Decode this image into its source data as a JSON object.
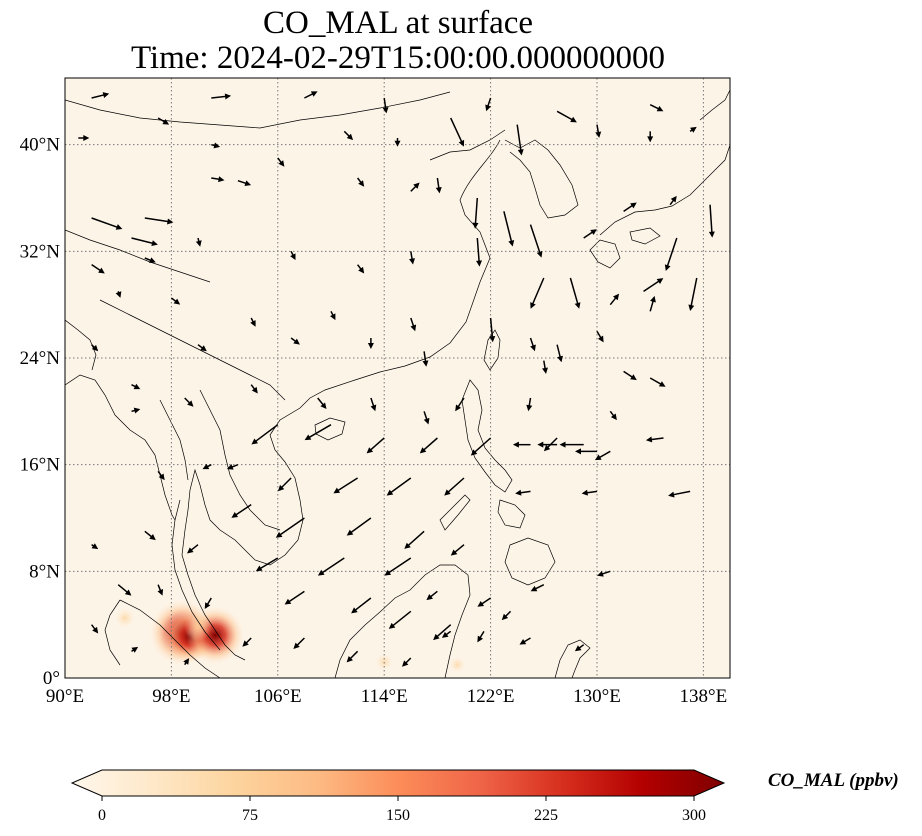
{
  "title": {
    "line1": "CO_MAL at surface",
    "line2": "Time: 2024-02-29T15:00:00.000000000"
  },
  "map": {
    "projection": "PlateCarree",
    "lon_range": [
      90,
      140
    ],
    "lat_range": [
      0,
      45
    ],
    "gridlines": "dotted",
    "background_color": "#fdf4e8",
    "x_ticks": [
      {
        "value": 90,
        "label": "90°E"
      },
      {
        "value": 98,
        "label": "98°E"
      },
      {
        "value": 106,
        "label": "106°E"
      },
      {
        "value": 114,
        "label": "114°E"
      },
      {
        "value": 122,
        "label": "122°E"
      },
      {
        "value": 130,
        "label": "130°E"
      },
      {
        "value": 138,
        "label": "138°E"
      }
    ],
    "y_ticks": [
      {
        "value": 0,
        "label": "0°"
      },
      {
        "value": 8,
        "label": "8°N"
      },
      {
        "value": 16,
        "label": "16°N"
      },
      {
        "value": 24,
        "label": "24°N"
      },
      {
        "value": 32,
        "label": "32°N"
      },
      {
        "value": 40,
        "label": "40°N"
      }
    ],
    "hotspots": [
      {
        "lon": 98.8,
        "lat": 3.4,
        "value": 270
      },
      {
        "lon": 99.4,
        "lat": 3.1,
        "value": 200
      },
      {
        "lon": 101.3,
        "lat": 3.2,
        "value": 230
      },
      {
        "lon": 100.0,
        "lat": 3.8,
        "value": 80
      },
      {
        "lon": 94.5,
        "lat": 4.5,
        "value": 40
      },
      {
        "lon": 114.0,
        "lat": 1.2,
        "value": 25
      },
      {
        "lon": 119.5,
        "lat": 1.0,
        "value": 20
      }
    ],
    "wind_vectors_note": "scale only",
    "wind_vectors": [
      [
        92,
        43.5,
        0.8,
        0.2
      ],
      [
        101,
        43.5,
        0.9,
        0.1
      ],
      [
        108,
        43.5,
        0.6,
        0.3
      ],
      [
        114,
        43.5,
        0.1,
        -0.7
      ],
      [
        122,
        43.5,
        -0.2,
        -0.6
      ],
      [
        127,
        42.5,
        0.9,
        -0.5
      ],
      [
        134,
        43,
        0.6,
        -0.3
      ],
      [
        119,
        42,
        0.6,
        -1.3
      ],
      [
        124,
        41.5,
        0.2,
        -1.4
      ],
      [
        101,
        40,
        0.4,
        -0.1
      ],
      [
        97,
        42,
        0.5,
        -0.3
      ],
      [
        91,
        40.5,
        0.5,
        0
      ],
      [
        111,
        41,
        0.4,
        -0.4
      ],
      [
        115,
        40.5,
        0,
        -0.4
      ],
      [
        130,
        41.5,
        0.1,
        -0.6
      ],
      [
        134,
        41,
        0,
        -0.5
      ],
      [
        137,
        41,
        0.3,
        0.2
      ],
      [
        106,
        39,
        0.3,
        -0.4
      ],
      [
        118,
        37.5,
        0.1,
        -0.7
      ],
      [
        121,
        36,
        -0.1,
        -1.4
      ],
      [
        92,
        34.5,
        1.4,
        -0.5
      ],
      [
        96,
        34.5,
        1.3,
        -0.2
      ],
      [
        95,
        33,
        1.2,
        -0.3
      ],
      [
        101,
        37.5,
        0.6,
        -0.1
      ],
      [
        103,
        37.3,
        0.6,
        -0.2
      ],
      [
        112,
        37.5,
        0.3,
        -0.4
      ],
      [
        116,
        36.5,
        0.4,
        0.4
      ],
      [
        123,
        35,
        0.4,
        -1.6
      ],
      [
        125,
        34,
        0.5,
        -1.5
      ],
      [
        129,
        33,
        0.6,
        0.4
      ],
      [
        132,
        35,
        0.6,
        0.4
      ],
      [
        135.5,
        35.5,
        0.3,
        0.4
      ],
      [
        138.5,
        35.5,
        0.1,
        -1.5
      ],
      [
        136,
        33,
        -0.5,
        -1.5
      ],
      [
        137.5,
        30,
        -0.3,
        -1.5
      ],
      [
        133.5,
        29,
        0.9,
        0.6
      ],
      [
        134,
        27.5,
        0.2,
        0.7
      ],
      [
        131,
        28,
        0.4,
        0.5
      ],
      [
        92,
        31,
        0.6,
        -0.4
      ],
      [
        96,
        31.5,
        0.5,
        -0.2
      ],
      [
        100,
        33,
        0.1,
        -0.4
      ],
      [
        107,
        32,
        0.2,
        -0.4
      ],
      [
        112,
        31,
        0.3,
        -0.4
      ],
      [
        116,
        32,
        0.1,
        -0.6
      ],
      [
        121,
        33,
        0.1,
        -1.3
      ],
      [
        126,
        30,
        -0.6,
        -1.4
      ],
      [
        128,
        30,
        0.4,
        -1.4
      ],
      [
        94,
        29,
        0.1,
        -0.3
      ],
      [
        98,
        28.5,
        0.4,
        -0.3
      ],
      [
        104,
        27,
        0.2,
        -0.4
      ],
      [
        110,
        27.5,
        0.2,
        -0.4
      ],
      [
        116,
        27,
        0.2,
        -0.6
      ],
      [
        122,
        27,
        0.1,
        -1.1
      ],
      [
        125,
        25.5,
        0.2,
        -0.6
      ],
      [
        127,
        25,
        0.2,
        -0.8
      ],
      [
        130,
        26,
        0.3,
        -0.5
      ],
      [
        92,
        25,
        0.3,
        -0.3
      ],
      [
        100,
        25,
        0.4,
        -0.3
      ],
      [
        107,
        25.5,
        0.4,
        -0.3
      ],
      [
        113,
        25.5,
        0,
        -0.5
      ],
      [
        117,
        24.5,
        0.1,
        -0.7
      ],
      [
        126,
        23.8,
        0.1,
        -0.6
      ],
      [
        132,
        23,
        0.6,
        -0.4
      ],
      [
        134,
        22.5,
        0.7,
        -0.4
      ],
      [
        95,
        22,
        0.4,
        -0.2
      ],
      [
        99,
        21,
        0.4,
        -0.4
      ],
      [
        104,
        22,
        0.3,
        -0.4
      ],
      [
        109,
        21,
        0.4,
        -0.5
      ],
      [
        113,
        21,
        0.2,
        -0.6
      ],
      [
        117,
        20,
        0.2,
        -0.6
      ],
      [
        120,
        21,
        -0.4,
        -0.6
      ],
      [
        125,
        21,
        -0.1,
        -0.6
      ],
      [
        131,
        20,
        0.3,
        -0.4
      ],
      [
        95,
        20,
        0.4,
        0.1
      ],
      [
        106,
        19,
        -1.2,
        -0.9
      ],
      [
        110,
        19,
        -1.2,
        -0.7
      ],
      [
        114,
        18,
        -0.8,
        -0.7
      ],
      [
        118,
        18,
        -0.8,
        -0.7
      ],
      [
        122,
        18,
        -0.9,
        -0.8
      ],
      [
        127,
        18,
        -0.6,
        -0.6
      ],
      [
        131,
        17,
        -0.7,
        -0.4
      ],
      [
        135,
        18,
        -0.8,
        -0.1
      ],
      [
        97,
        15.5,
        0.3,
        -0.4
      ],
      [
        101,
        16,
        -0.4,
        -0.2
      ],
      [
        103,
        16,
        -0.5,
        -0.2
      ],
      [
        107,
        15,
        -0.6,
        -0.6
      ],
      [
        112,
        15,
        -1.1,
        -0.7
      ],
      [
        116,
        15,
        -1.1,
        -0.8
      ],
      [
        120,
        15,
        -0.9,
        -0.8
      ],
      [
        125,
        17.5,
        -0.8,
        0
      ],
      [
        127,
        17.5,
        -0.9,
        0
      ],
      [
        129,
        17.5,
        -1.1,
        0
      ],
      [
        130,
        17,
        -1,
        0
      ],
      [
        104,
        13,
        -0.9,
        -0.6
      ],
      [
        108,
        12,
        -1.3,
        -0.9
      ],
      [
        113,
        12,
        -1.1,
        -0.8
      ],
      [
        117,
        11,
        -0.9,
        -0.8
      ],
      [
        120,
        10,
        -0.6,
        -0.5
      ],
      [
        125,
        14,
        -0.7,
        -0.1
      ],
      [
        130,
        14,
        -0.7,
        -0.1
      ],
      [
        137,
        14,
        -1,
        -0.2
      ],
      [
        92,
        10,
        0.3,
        -0.2
      ],
      [
        96,
        11,
        0.5,
        -0.4
      ],
      [
        100,
        10,
        -0.5,
        -0.4
      ],
      [
        106,
        9,
        -1,
        -0.6
      ],
      [
        111,
        9,
        -1.2,
        -0.8
      ],
      [
        116,
        9,
        -1.2,
        -0.8
      ],
      [
        118,
        6.5,
        -0.5,
        -0.4
      ],
      [
        122,
        6,
        -0.6,
        -0.4
      ],
      [
        126,
        7,
        -0.6,
        -0.3
      ],
      [
        131,
        8,
        -0.6,
        -0.2
      ],
      [
        94,
        7,
        0.6,
        -0.5
      ],
      [
        97,
        7,
        0.2,
        -0.5
      ],
      [
        101,
        6,
        -0.3,
        -0.5
      ],
      [
        108,
        6.5,
        -0.9,
        -0.6
      ],
      [
        113,
        6,
        -0.9,
        -0.7
      ],
      [
        116,
        5,
        -1,
        -0.8
      ],
      [
        119,
        4,
        -0.8,
        -0.7
      ],
      [
        121.5,
        3.5,
        -0.3,
        -0.5
      ],
      [
        125,
        3,
        -0.5,
        -0.3
      ],
      [
        129,
        2.5,
        -0.4,
        -0.3
      ],
      [
        92,
        4,
        0.3,
        -0.4
      ],
      [
        95,
        2,
        0.3,
        0.2
      ],
      [
        99,
        1,
        0.2,
        0.3
      ],
      [
        104,
        3,
        -0.4,
        -0.4
      ],
      [
        108,
        3,
        -0.5,
        -0.5
      ],
      [
        112,
        2,
        -0.5,
        -0.5
      ],
      [
        116,
        1.5,
        -0.4,
        -0.4
      ],
      [
        119,
        3.5,
        -0.4,
        -0.3
      ],
      [
        123.5,
        5,
        -0.4,
        -0.4
      ]
    ]
  },
  "colorbar": {
    "label": "CO_MAL (ppbv)",
    "ticks": [
      {
        "value": 0,
        "label": "0"
      },
      {
        "value": 75,
        "label": "75"
      },
      {
        "value": 150,
        "label": "150"
      },
      {
        "value": 225,
        "label": "225"
      },
      {
        "value": 300,
        "label": "300"
      }
    ],
    "range": [
      0,
      300
    ],
    "colormap": "OrRd",
    "stops": [
      "#fff7ec",
      "#fee8c8",
      "#fdd49e",
      "#fdbb84",
      "#fc8d59",
      "#ef6548",
      "#d7301f",
      "#b30000",
      "#7f0000"
    ],
    "extend": "both"
  },
  "coast_color": "#000000",
  "vector_color": "#000000"
}
